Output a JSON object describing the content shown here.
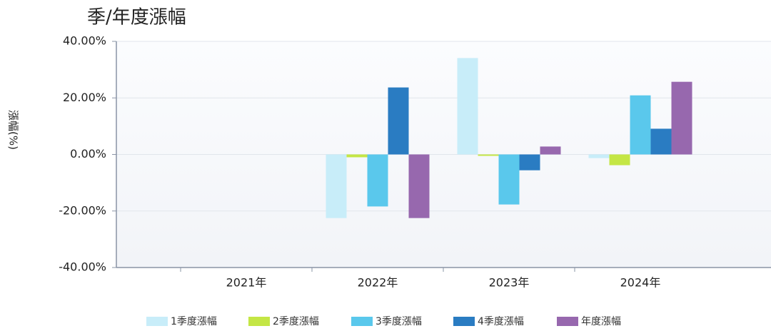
{
  "chart_data": {
    "type": "bar",
    "title": "季/年度漲幅",
    "y_label": "漲幅(%)",
    "categories": [
      "2021年",
      "2022年",
      "2023年",
      "2024年"
    ],
    "series": [
      {
        "name": "1季度漲幅",
        "color": "#c8edf9",
        "values": [
          null,
          -22.5,
          34.1,
          -1.3
        ]
      },
      {
        "name": "2季度漲幅",
        "color": "#c4e645",
        "values": [
          null,
          -1.0,
          -0.5,
          -3.8
        ]
      },
      {
        "name": "3季度漲幅",
        "color": "#5ac8ec",
        "values": [
          null,
          -18.4,
          -17.7,
          20.9
        ]
      },
      {
        "name": "4季度漲幅",
        "color": "#2a7cc2",
        "values": [
          null,
          23.7,
          -5.6,
          9.1
        ]
      },
      {
        "name": "年度漲幅",
        "color": "#9768ae",
        "values": [
          null,
          -22.5,
          2.8,
          25.7
        ]
      }
    ],
    "ylim": [
      -40,
      40
    ],
    "yticks": [
      {
        "value": -40,
        "label": "-40.00%"
      },
      {
        "value": -20,
        "label": "-20.00%"
      },
      {
        "value": 0,
        "label": "0.00%"
      },
      {
        "value": 20,
        "label": "20.00%"
      },
      {
        "value": 40,
        "label": "40.00%"
      }
    ],
    "grid": true
  }
}
